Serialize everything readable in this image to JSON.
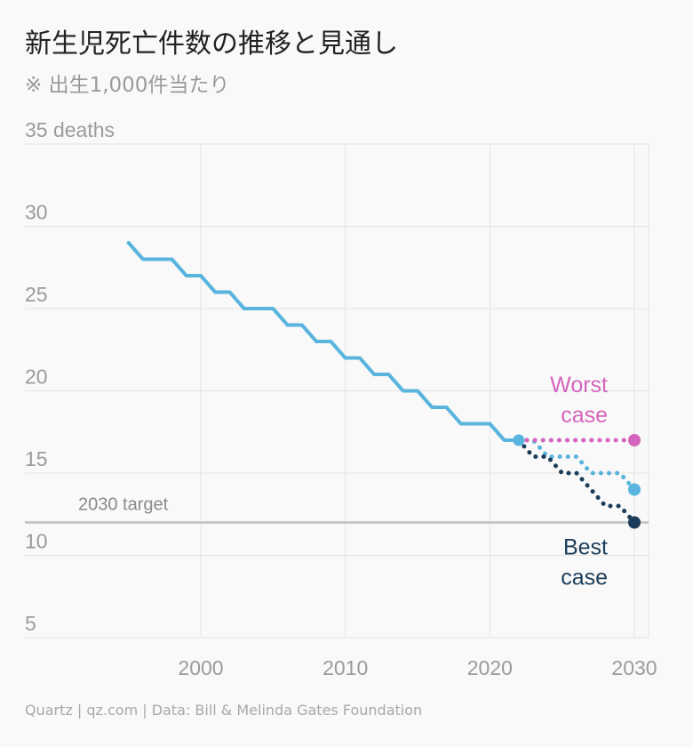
{
  "title": "新生児死亡件数の推移と見通し",
  "subtitle": "※ 出生1,000件当たり",
  "source": "Quartz | qz.com | Data: Bill & Melinda Gates Foundation",
  "colors": {
    "historical": "#59b4de",
    "worst": "#d465bd",
    "best": "#1c3d5a",
    "projected": "#59b4de",
    "target": "#c8c8c8",
    "grid": "#e4e4e4"
  },
  "chart_data": {
    "type": "line",
    "ylim": [
      5,
      35
    ],
    "xlim": [
      1990,
      2030
    ],
    "y_ticks": [
      {
        "value": 35,
        "label": "35 deaths"
      },
      {
        "value": 30,
        "label": "30"
      },
      {
        "value": 25,
        "label": "25"
      },
      {
        "value": 20,
        "label": "20"
      },
      {
        "value": 15,
        "label": "15"
      },
      {
        "value": 10,
        "label": "10"
      },
      {
        "value": 5,
        "label": "5"
      }
    ],
    "x_ticks": [
      {
        "value": 2000,
        "label": "2000"
      },
      {
        "value": 2010,
        "label": "2010"
      },
      {
        "value": 2020,
        "label": "2020"
      },
      {
        "value": 2030,
        "label": "2030"
      }
    ],
    "target": {
      "value": 12,
      "label": "2030 target"
    },
    "series": [
      {
        "key": "historical",
        "style": "solid",
        "x": [
          1995,
          1996,
          1997,
          1998,
          1999,
          2000,
          2001,
          2002,
          2003,
          2004,
          2005,
          2006,
          2007,
          2008,
          2009,
          2010,
          2011,
          2012,
          2013,
          2014,
          2015,
          2016,
          2017,
          2018,
          2019,
          2020,
          2021,
          2022
        ],
        "values": [
          29,
          28,
          28,
          28,
          27,
          27,
          26,
          26,
          25,
          25,
          25,
          24,
          24,
          23,
          23,
          22,
          22,
          21,
          21,
          20,
          20,
          19,
          19,
          18,
          18,
          18,
          17,
          17
        ]
      },
      {
        "key": "projected",
        "style": "dotted",
        "x": [
          2022,
          2023,
          2024,
          2025,
          2026,
          2027,
          2028,
          2029,
          2030
        ],
        "values": [
          17,
          17,
          16,
          16,
          16,
          15,
          15,
          15,
          14
        ]
      },
      {
        "name": "Worst case",
        "key": "worst",
        "style": "dotted",
        "x": [
          2022,
          2023,
          2024,
          2025,
          2026,
          2027,
          2028,
          2029,
          2030
        ],
        "values": [
          17,
          17,
          17,
          17,
          17,
          17,
          17,
          17,
          17
        ]
      },
      {
        "name": "Best case",
        "key": "best",
        "style": "dotted",
        "x": [
          2022,
          2023,
          2024,
          2025,
          2026,
          2027,
          2028,
          2029,
          2030
        ],
        "values": [
          17,
          16,
          16,
          15,
          15,
          14,
          13,
          13,
          12
        ]
      }
    ],
    "annotations": {
      "worst": [
        "Worst",
        "case"
      ],
      "best": [
        "Best",
        "case"
      ]
    }
  }
}
